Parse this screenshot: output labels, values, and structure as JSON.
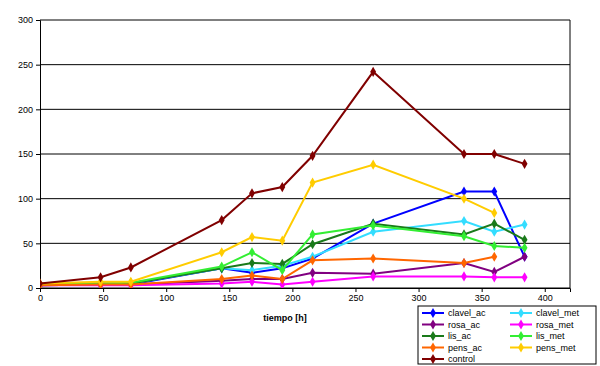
{
  "chart_data": {
    "type": "line",
    "x_label": "tiempo [h]",
    "x": [
      0,
      48,
      72,
      144,
      168,
      192,
      216,
      264,
      336,
      360,
      384
    ],
    "xlim": [
      0,
      420
    ],
    "xticks": [
      0,
      50,
      100,
      150,
      200,
      250,
      300,
      350,
      400
    ],
    "ylim": [
      0,
      300
    ],
    "yticks": [
      0,
      50,
      100,
      150,
      200,
      250,
      300
    ],
    "grid": true,
    "legend": "bottom-right",
    "marker": "diamond",
    "line_style": "solid",
    "series": [
      {
        "name": "clavel_ac",
        "color": "#0000ff",
        "values": [
          3,
          4,
          4,
          22,
          17,
          22,
          33,
          72,
          108,
          108,
          35
        ]
      },
      {
        "name": "clavel_met",
        "color": "#33ddff",
        "values": [
          4,
          5,
          5,
          22,
          20,
          25,
          35,
          63,
          75,
          63,
          71
        ]
      },
      {
        "name": "rosa_ac",
        "color": "#800080",
        "values": [
          3,
          4,
          4,
          8,
          10,
          10,
          17,
          16,
          28,
          18,
          35
        ]
      },
      {
        "name": "rosa_met",
        "color": "#ff00ff",
        "values": [
          3,
          3,
          3,
          5,
          7,
          4,
          7,
          13,
          13,
          12,
          12
        ]
      },
      {
        "name": "lis_ac",
        "color": "#1a7a1a",
        "values": [
          4,
          5,
          5,
          22,
          28,
          27,
          49,
          72,
          60,
          72,
          54
        ]
      },
      {
        "name": "lis_met",
        "color": "#33ee33",
        "values": [
          4,
          5,
          6,
          24,
          40,
          20,
          60,
          70,
          58,
          47,
          45
        ]
      },
      {
        "name": "pens_ac",
        "color": "#ff6600",
        "values": [
          3,
          4,
          4,
          10,
          14,
          10,
          31,
          33,
          28,
          35,
          null
        ]
      },
      {
        "name": "pens_met",
        "color": "#ffcc00",
        "values": [
          5,
          7,
          7,
          40,
          57,
          53,
          118,
          138,
          100,
          84,
          null
        ]
      },
      {
        "name": "control",
        "color": "#800000",
        "values": [
          5,
          12,
          23,
          76,
          106,
          113,
          148,
          242,
          150,
          150,
          139
        ]
      }
    ]
  }
}
